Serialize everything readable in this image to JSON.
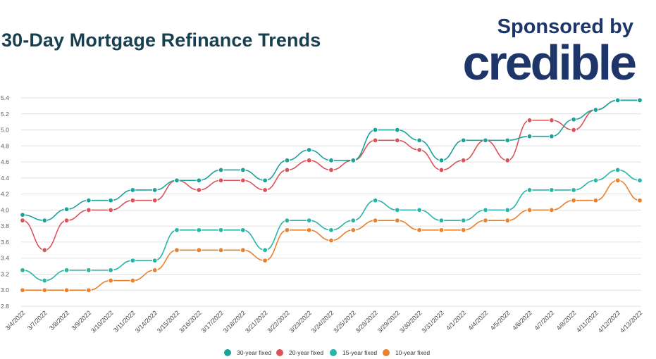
{
  "header": {
    "title": "30-Day Mortgage Refinance Trends",
    "sponsor_text": "Sponsored by",
    "brand": "credible"
  },
  "colors": {
    "title": "#173f4f",
    "brand": "#1e3569",
    "grid": "#e0e0e0",
    "s30": "#1aa39a",
    "s20": "#d9545a",
    "s15": "#27b5a7",
    "s10": "#e8812e"
  },
  "chart_data": {
    "type": "line",
    "x": [
      "3/4/2022",
      "3/7/2022",
      "3/8/2022",
      "3/9/2022",
      "3/10/2022",
      "3/11/2022",
      "3/14/2022",
      "3/15/2022",
      "3/16/2022",
      "3/17/2022",
      "3/18/2022",
      "3/21/2022",
      "3/22/2022",
      "3/23/2022",
      "3/24/2022",
      "3/25/2022",
      "3/28/2022",
      "3/29/2022",
      "3/30/2022",
      "3/31/2022",
      "4/1/2022",
      "4/4/2022",
      "4/5/2022",
      "4/6/2022",
      "4/7/2022",
      "4/8/2022",
      "4/11/2022",
      "4/12/2022",
      "4/13/2022"
    ],
    "ylim": [
      2.8,
      5.4
    ],
    "yticks": [
      "2.8",
      "3.0",
      "3.2",
      "3.4",
      "3.6",
      "3.8",
      "4.0",
      "4.2",
      "4.4",
      "4.6",
      "4.8",
      "5.0",
      "5.2",
      "5.4"
    ],
    "grid": true,
    "legend_position": "bottom",
    "series": [
      {
        "name": "30-year fixed",
        "color": "#1aa39a",
        "values": [
          3.94,
          3.87,
          4.01,
          4.12,
          4.12,
          4.25,
          4.25,
          4.37,
          4.37,
          4.5,
          4.5,
          4.37,
          4.62,
          4.75,
          4.62,
          4.62,
          5.0,
          5.0,
          4.87,
          4.62,
          4.87,
          4.87,
          4.87,
          4.92,
          4.92,
          5.13,
          5.25,
          5.37,
          5.37
        ]
      },
      {
        "name": "20-year fixed",
        "color": "#d9545a",
        "values": [
          3.87,
          3.5,
          3.87,
          4.0,
          4.0,
          4.12,
          4.12,
          4.37,
          4.25,
          4.37,
          4.37,
          4.25,
          4.5,
          4.62,
          4.5,
          4.62,
          4.87,
          4.87,
          4.75,
          4.5,
          4.62,
          4.87,
          4.62,
          5.12,
          5.12,
          5.0,
          5.25,
          5.37,
          5.37
        ]
      },
      {
        "name": "15-year fixed",
        "color": "#27b5a7",
        "values": [
          3.25,
          3.12,
          3.25,
          3.25,
          3.25,
          3.37,
          3.37,
          3.75,
          3.75,
          3.75,
          3.75,
          3.5,
          3.87,
          3.87,
          3.75,
          3.87,
          4.12,
          4.0,
          4.0,
          3.87,
          3.87,
          4.0,
          4.0,
          4.25,
          4.25,
          4.25,
          4.37,
          4.5,
          4.37
        ]
      },
      {
        "name": "10-year fixed",
        "color": "#e8812e",
        "values": [
          3.0,
          3.0,
          3.0,
          3.0,
          3.12,
          3.12,
          3.25,
          3.5,
          3.5,
          3.5,
          3.5,
          3.37,
          3.75,
          3.75,
          3.62,
          3.75,
          3.87,
          3.87,
          3.75,
          3.75,
          3.75,
          3.87,
          3.87,
          4.0,
          4.0,
          4.12,
          4.12,
          4.37,
          4.12
        ]
      }
    ]
  }
}
